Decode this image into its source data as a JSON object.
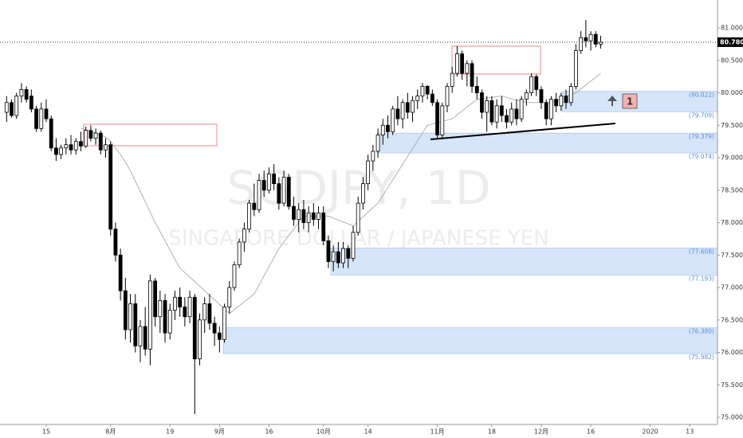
{
  "chart_data": {
    "type": "candlestick",
    "watermark_symbol": "SGDJPY, 1D",
    "watermark_name": "SINGAPORE DOLLAR / JAPANESE YEN",
    "categories": [
      null,
      null,
      null,
      null,
      null,
      null,
      null,
      null,
      "15",
      null,
      null,
      null,
      null,
      null,
      null,
      null,
      null,
      null,
      null,
      null,
      null,
      "8月",
      null,
      null,
      null,
      null,
      null,
      null,
      null,
      null,
      null,
      null,
      null,
      "19",
      null,
      null,
      null,
      null,
      null,
      null,
      null,
      null,
      null,
      "9月",
      null,
      null,
      null,
      null,
      null,
      null,
      null,
      null,
      null,
      "16",
      null,
      null,
      null,
      null,
      null,
      null,
      null,
      null,
      null,
      null,
      "10月",
      null,
      null,
      null,
      null,
      null,
      null,
      null,
      null,
      "14",
      null,
      null,
      null,
      null,
      null,
      null,
      null,
      null,
      null,
      null,
      null,
      null,
      null,
      "11月",
      null,
      null,
      null,
      null,
      null,
      null,
      null,
      null,
      null,
      null,
      "18",
      null,
      null,
      null,
      null,
      null,
      null,
      null,
      null,
      null,
      "12月",
      null,
      null,
      null,
      null,
      null,
      null,
      null,
      null,
      null,
      "16",
      null,
      null,
      null,
      null,
      null,
      null,
      null,
      null,
      null,
      null,
      null,
      "2020",
      null,
      null,
      null,
      null,
      null,
      null,
      null,
      "13",
      null,
      null
    ],
    "candles": [
      [
        79.7,
        79.95,
        79.55,
        79.85
      ],
      [
        79.85,
        79.9,
        79.62,
        79.65
      ],
      [
        79.65,
        80.0,
        79.6,
        79.95
      ],
      [
        79.95,
        80.15,
        79.85,
        80.05
      ],
      [
        80.05,
        80.1,
        79.85,
        79.9
      ],
      [
        79.95,
        80.05,
        79.7,
        79.75
      ],
      [
        79.75,
        79.8,
        79.4,
        79.45
      ],
      [
        79.45,
        79.85,
        79.4,
        79.75
      ],
      [
        79.75,
        79.9,
        79.55,
        79.6
      ],
      [
        79.6,
        79.65,
        79.1,
        79.15
      ],
      [
        79.15,
        79.3,
        78.95,
        79.05
      ],
      [
        79.05,
        79.2,
        78.98,
        79.15
      ],
      [
        79.15,
        79.3,
        79.05,
        79.2
      ],
      [
        79.2,
        79.35,
        79.05,
        79.12
      ],
      [
        79.12,
        79.3,
        79.05,
        79.25
      ],
      [
        79.25,
        79.4,
        79.1,
        79.18
      ],
      [
        79.18,
        79.48,
        79.15,
        79.42
      ],
      [
        79.42,
        79.5,
        79.25,
        79.3
      ],
      [
        79.3,
        79.45,
        79.2,
        79.38
      ],
      [
        79.38,
        79.42,
        79.05,
        79.12
      ],
      [
        79.12,
        79.3,
        79.0,
        79.2
      ],
      [
        79.2,
        79.25,
        77.8,
        77.9
      ],
      [
        77.9,
        78.0,
        77.4,
        77.5
      ],
      [
        77.5,
        77.6,
        76.8,
        76.95
      ],
      [
        76.95,
        77.15,
        76.2,
        76.35
      ],
      [
        76.35,
        76.9,
        76.15,
        76.75
      ],
      [
        76.75,
        76.9,
        76.0,
        76.1
      ],
      [
        76.1,
        76.5,
        75.85,
        76.4
      ],
      [
        76.4,
        76.7,
        75.95,
        76.05
      ],
      [
        76.05,
        77.2,
        75.8,
        77.1
      ],
      [
        77.1,
        77.15,
        76.4,
        76.55
      ],
      [
        76.55,
        76.95,
        76.3,
        76.8
      ],
      [
        76.8,
        76.9,
        76.15,
        76.3
      ],
      [
        76.3,
        76.75,
        76.2,
        76.65
      ],
      [
        76.65,
        76.95,
        76.5,
        76.85
      ],
      [
        76.85,
        77.0,
        76.55,
        76.7
      ],
      [
        76.7,
        76.85,
        76.4,
        76.55
      ],
      [
        76.55,
        76.95,
        76.45,
        76.85
      ],
      [
        76.85,
        76.9,
        75.05,
        75.9
      ],
      [
        75.9,
        76.6,
        75.8,
        76.5
      ],
      [
        76.5,
        76.85,
        76.3,
        76.75
      ],
      [
        76.75,
        76.9,
        76.35,
        76.45
      ],
      [
        76.45,
        76.55,
        76.1,
        76.3
      ],
      [
        76.3,
        76.4,
        76.0,
        76.2
      ],
      [
        76.2,
        76.75,
        76.15,
        76.7
      ],
      [
        76.7,
        77.1,
        76.6,
        77.0
      ],
      [
        77.0,
        77.4,
        76.95,
        77.35
      ],
      [
        77.35,
        77.75,
        77.3,
        77.7
      ],
      [
        77.7,
        78.0,
        77.55,
        77.9
      ],
      [
        77.9,
        78.35,
        77.85,
        78.3
      ],
      [
        78.3,
        78.6,
        78.1,
        78.2
      ],
      [
        78.2,
        78.75,
        78.15,
        78.65
      ],
      [
        78.65,
        78.8,
        78.4,
        78.5
      ],
      [
        78.5,
        78.85,
        78.45,
        78.75
      ],
      [
        78.75,
        78.9,
        78.5,
        78.6
      ],
      [
        78.6,
        78.7,
        78.2,
        78.3
      ],
      [
        78.3,
        78.8,
        78.25,
        78.7
      ],
      [
        78.7,
        78.75,
        78.2,
        78.25
      ],
      [
        78.25,
        78.4,
        77.95,
        78.05
      ],
      [
        78.05,
        78.3,
        77.85,
        78.2
      ],
      [
        78.2,
        78.35,
        77.9,
        78.0
      ],
      [
        78.0,
        78.25,
        77.85,
        78.15
      ],
      [
        78.15,
        78.3,
        77.95,
        78.05
      ],
      [
        78.05,
        78.25,
        77.9,
        78.15
      ],
      [
        78.15,
        78.25,
        77.65,
        77.72
      ],
      [
        77.72,
        77.8,
        77.3,
        77.4
      ],
      [
        77.4,
        77.65,
        77.25,
        77.55
      ],
      [
        77.55,
        77.7,
        77.3,
        77.38
      ],
      [
        77.38,
        77.7,
        77.3,
        77.6
      ],
      [
        77.6,
        77.65,
        77.3,
        77.45
      ],
      [
        77.45,
        77.95,
        77.4,
        77.85
      ],
      [
        77.85,
        78.4,
        77.8,
        78.3
      ],
      [
        78.3,
        78.7,
        78.2,
        78.6
      ],
      [
        78.6,
        79.05,
        78.5,
        78.95
      ],
      [
        78.95,
        79.2,
        78.8,
        79.1
      ],
      [
        79.1,
        79.45,
        79.0,
        79.35
      ],
      [
        79.35,
        79.6,
        79.2,
        79.5
      ],
      [
        79.5,
        79.65,
        79.3,
        79.4
      ],
      [
        79.4,
        79.8,
        79.35,
        79.75
      ],
      [
        79.75,
        79.95,
        79.5,
        79.6
      ],
      [
        79.6,
        79.9,
        79.45,
        79.85
      ],
      [
        79.85,
        80.0,
        79.6,
        79.7
      ],
      [
        79.7,
        79.95,
        79.55,
        79.88
      ],
      [
        79.88,
        80.05,
        79.75,
        79.95
      ],
      [
        79.95,
        80.15,
        79.85,
        80.1
      ],
      [
        80.1,
        80.12,
        79.9,
        79.98
      ],
      [
        79.98,
        80.05,
        79.8,
        79.85
      ],
      [
        79.85,
        79.9,
        79.28,
        79.35
      ],
      [
        79.35,
        79.85,
        79.3,
        79.8
      ],
      [
        79.8,
        80.15,
        79.7,
        80.1
      ],
      [
        80.1,
        80.4,
        80.0,
        80.3
      ],
      [
        80.3,
        80.72,
        80.25,
        80.6
      ],
      [
        80.6,
        80.65,
        80.2,
        80.3
      ],
      [
        80.3,
        80.5,
        80.1,
        80.45
      ],
      [
        80.45,
        80.5,
        80.0,
        80.1
      ],
      [
        80.1,
        80.25,
        79.9,
        80.0
      ],
      [
        80.0,
        80.05,
        79.6,
        79.7
      ],
      [
        79.7,
        79.95,
        79.4,
        79.88
      ],
      [
        79.88,
        79.95,
        79.5,
        79.55
      ],
      [
        79.55,
        79.9,
        79.45,
        79.8
      ],
      [
        79.8,
        79.95,
        79.55,
        79.65
      ],
      [
        79.65,
        79.75,
        79.45,
        79.55
      ],
      [
        79.55,
        79.85,
        79.5,
        79.75
      ],
      [
        79.75,
        79.9,
        79.5,
        79.6
      ],
      [
        79.6,
        79.95,
        79.55,
        79.9
      ],
      [
        79.9,
        80.05,
        79.8,
        80.0
      ],
      [
        80.0,
        80.3,
        79.95,
        80.25
      ],
      [
        80.25,
        80.28,
        79.95,
        80.05
      ],
      [
        80.05,
        80.1,
        79.75,
        79.85
      ],
      [
        79.85,
        79.9,
        79.5,
        79.6
      ],
      [
        79.6,
        79.95,
        79.5,
        79.9
      ],
      [
        79.9,
        80.0,
        79.7,
        79.8
      ],
      [
        79.8,
        80.0,
        79.72,
        79.95
      ],
      [
        79.95,
        80.05,
        79.75,
        79.85
      ],
      [
        79.85,
        80.15,
        79.8,
        80.1
      ],
      [
        80.1,
        80.75,
        80.05,
        80.65
      ],
      [
        80.65,
        80.95,
        80.6,
        80.85
      ],
      [
        80.85,
        81.12,
        80.7,
        80.8
      ],
      [
        80.8,
        80.95,
        80.65,
        80.9
      ],
      [
        80.9,
        80.95,
        80.7,
        80.75
      ],
      [
        80.75,
        80.88,
        80.68,
        80.78
      ],
      null,
      null,
      null,
      null,
      null,
      null,
      null,
      null,
      null,
      null,
      null,
      null,
      null,
      null,
      null,
      null,
      null,
      null,
      null,
      null
    ],
    "ma": [
      null,
      null,
      null,
      null,
      null,
      null,
      null,
      null,
      null,
      null,
      null,
      null,
      null,
      null,
      null,
      79.45,
      79.43,
      79.41,
      79.38,
      79.35,
      79.32,
      79.25,
      79.15,
      79.05,
      78.93,
      78.8,
      78.64,
      78.48,
      78.32,
      78.16,
      78.0,
      77.86,
      77.72,
      77.58,
      77.44,
      77.3,
      77.23,
      77.16,
      77.09,
      77.02,
      76.95,
      76.88,
      76.81,
      76.74,
      76.67,
      76.6,
      76.66,
      76.72,
      76.78,
      76.84,
      76.9,
      77.04,
      77.18,
      77.32,
      77.46,
      77.6,
      77.7,
      77.8,
      77.9,
      78.0,
      78.1,
      78.1,
      78.1,
      78.1,
      78.1,
      78.1,
      78.07,
      78.04,
      78.01,
      77.98,
      77.95,
      78.02,
      78.09,
      78.16,
      78.23,
      78.3,
      78.42,
      78.54,
      78.66,
      78.78,
      78.9,
      79.02,
      79.14,
      79.26,
      79.38,
      79.5,
      79.52,
      79.54,
      79.56,
      79.58,
      79.6,
      79.66,
      79.72,
      79.78,
      79.84,
      79.9,
      79.91,
      79.92,
      79.93,
      79.94,
      79.95,
      79.93,
      79.91,
      79.89,
      79.87,
      79.85,
      79.85,
      79.85,
      79.85,
      79.85,
      79.85,
      79.88,
      79.91,
      79.94,
      79.97,
      80.0,
      80.06,
      80.12,
      80.18,
      80.24,
      80.3,
      null,
      null,
      null,
      null,
      null,
      null,
      null,
      null,
      null,
      null,
      null,
      null,
      null,
      null,
      null,
      null,
      null,
      null,
      null,
      null
    ],
    "ylim": [
      74.89,
      81.43
    ],
    "yticks": [
      {
        "value": 75,
        "label": "75.000"
      },
      {
        "value": 75.5,
        "label": "75.500"
      },
      {
        "value": 76,
        "label": "76.000"
      },
      {
        "value": 76.5,
        "label": "76.500"
      },
      {
        "value": 77,
        "label": "77.000"
      },
      {
        "value": 77.5,
        "label": "77.500"
      },
      {
        "value": 78,
        "label": "78.000"
      },
      {
        "value": 78.5,
        "label": "78.500"
      },
      {
        "value": 79,
        "label": "79.000"
      },
      {
        "value": 79.5,
        "label": "79.500"
      },
      {
        "value": 80,
        "label": "80.000"
      },
      {
        "value": 80.5,
        "label": "80.500"
      },
      {
        "value": 81,
        "label": "81.000"
      }
    ],
    "last_price": {
      "value": 80.78,
      "label": "80.780"
    },
    "zones": [
      {
        "top": {
          "value": 80.022,
          "label": "(80.022)"
        },
        "bottom": {
          "value": 79.709,
          "label": "(79.709)"
        }
      },
      {
        "top": {
          "value": 79.379,
          "label": "(79.379)"
        },
        "bottom": {
          "value": 79.074,
          "label": "(79.074)"
        }
      },
      {
        "top": {
          "value": 77.608,
          "label": "(77.608)"
        },
        "bottom": {
          "value": 77.193,
          "label": "(77.193)"
        }
      },
      {
        "top": {
          "value": 76.38,
          "label": "(76.380)"
        },
        "bottom": {
          "value": 75.982,
          "label": "(75.982)"
        }
      }
    ],
    "badge": "1",
    "up_color": "#ffffff",
    "down_color": "#000000",
    "zone_color": "#cfe0f8",
    "ma_color": "#b0b0b0"
  }
}
